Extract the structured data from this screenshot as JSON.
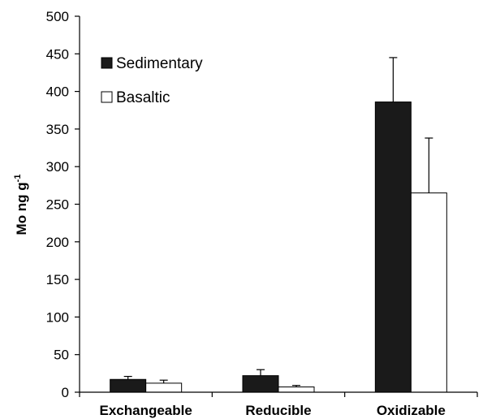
{
  "chart_data": {
    "type": "bar",
    "title": "",
    "xlabel": "",
    "ylabel": "Mo ng g",
    "ylabel_sup": "-1",
    "categories": [
      "Exchangeable",
      "Reducible",
      "Oxidizable"
    ],
    "series": [
      {
        "name": "Sedimentary",
        "values": [
          17,
          22,
          386
        ],
        "errors": [
          4,
          8,
          59
        ],
        "fill": "#1a1a1a"
      },
      {
        "name": "Basaltic",
        "values": [
          12,
          7,
          265
        ],
        "errors": [
          4,
          2,
          73
        ],
        "fill": "#ffffff"
      }
    ],
    "ylim": [
      0,
      500
    ],
    "yticks": [
      0,
      50,
      100,
      150,
      200,
      250,
      300,
      350,
      400,
      450,
      500
    ],
    "grid": false,
    "legend_position": "top-left"
  },
  "colors": {
    "axis": "#000000",
    "bar_outline": "#000000"
  }
}
